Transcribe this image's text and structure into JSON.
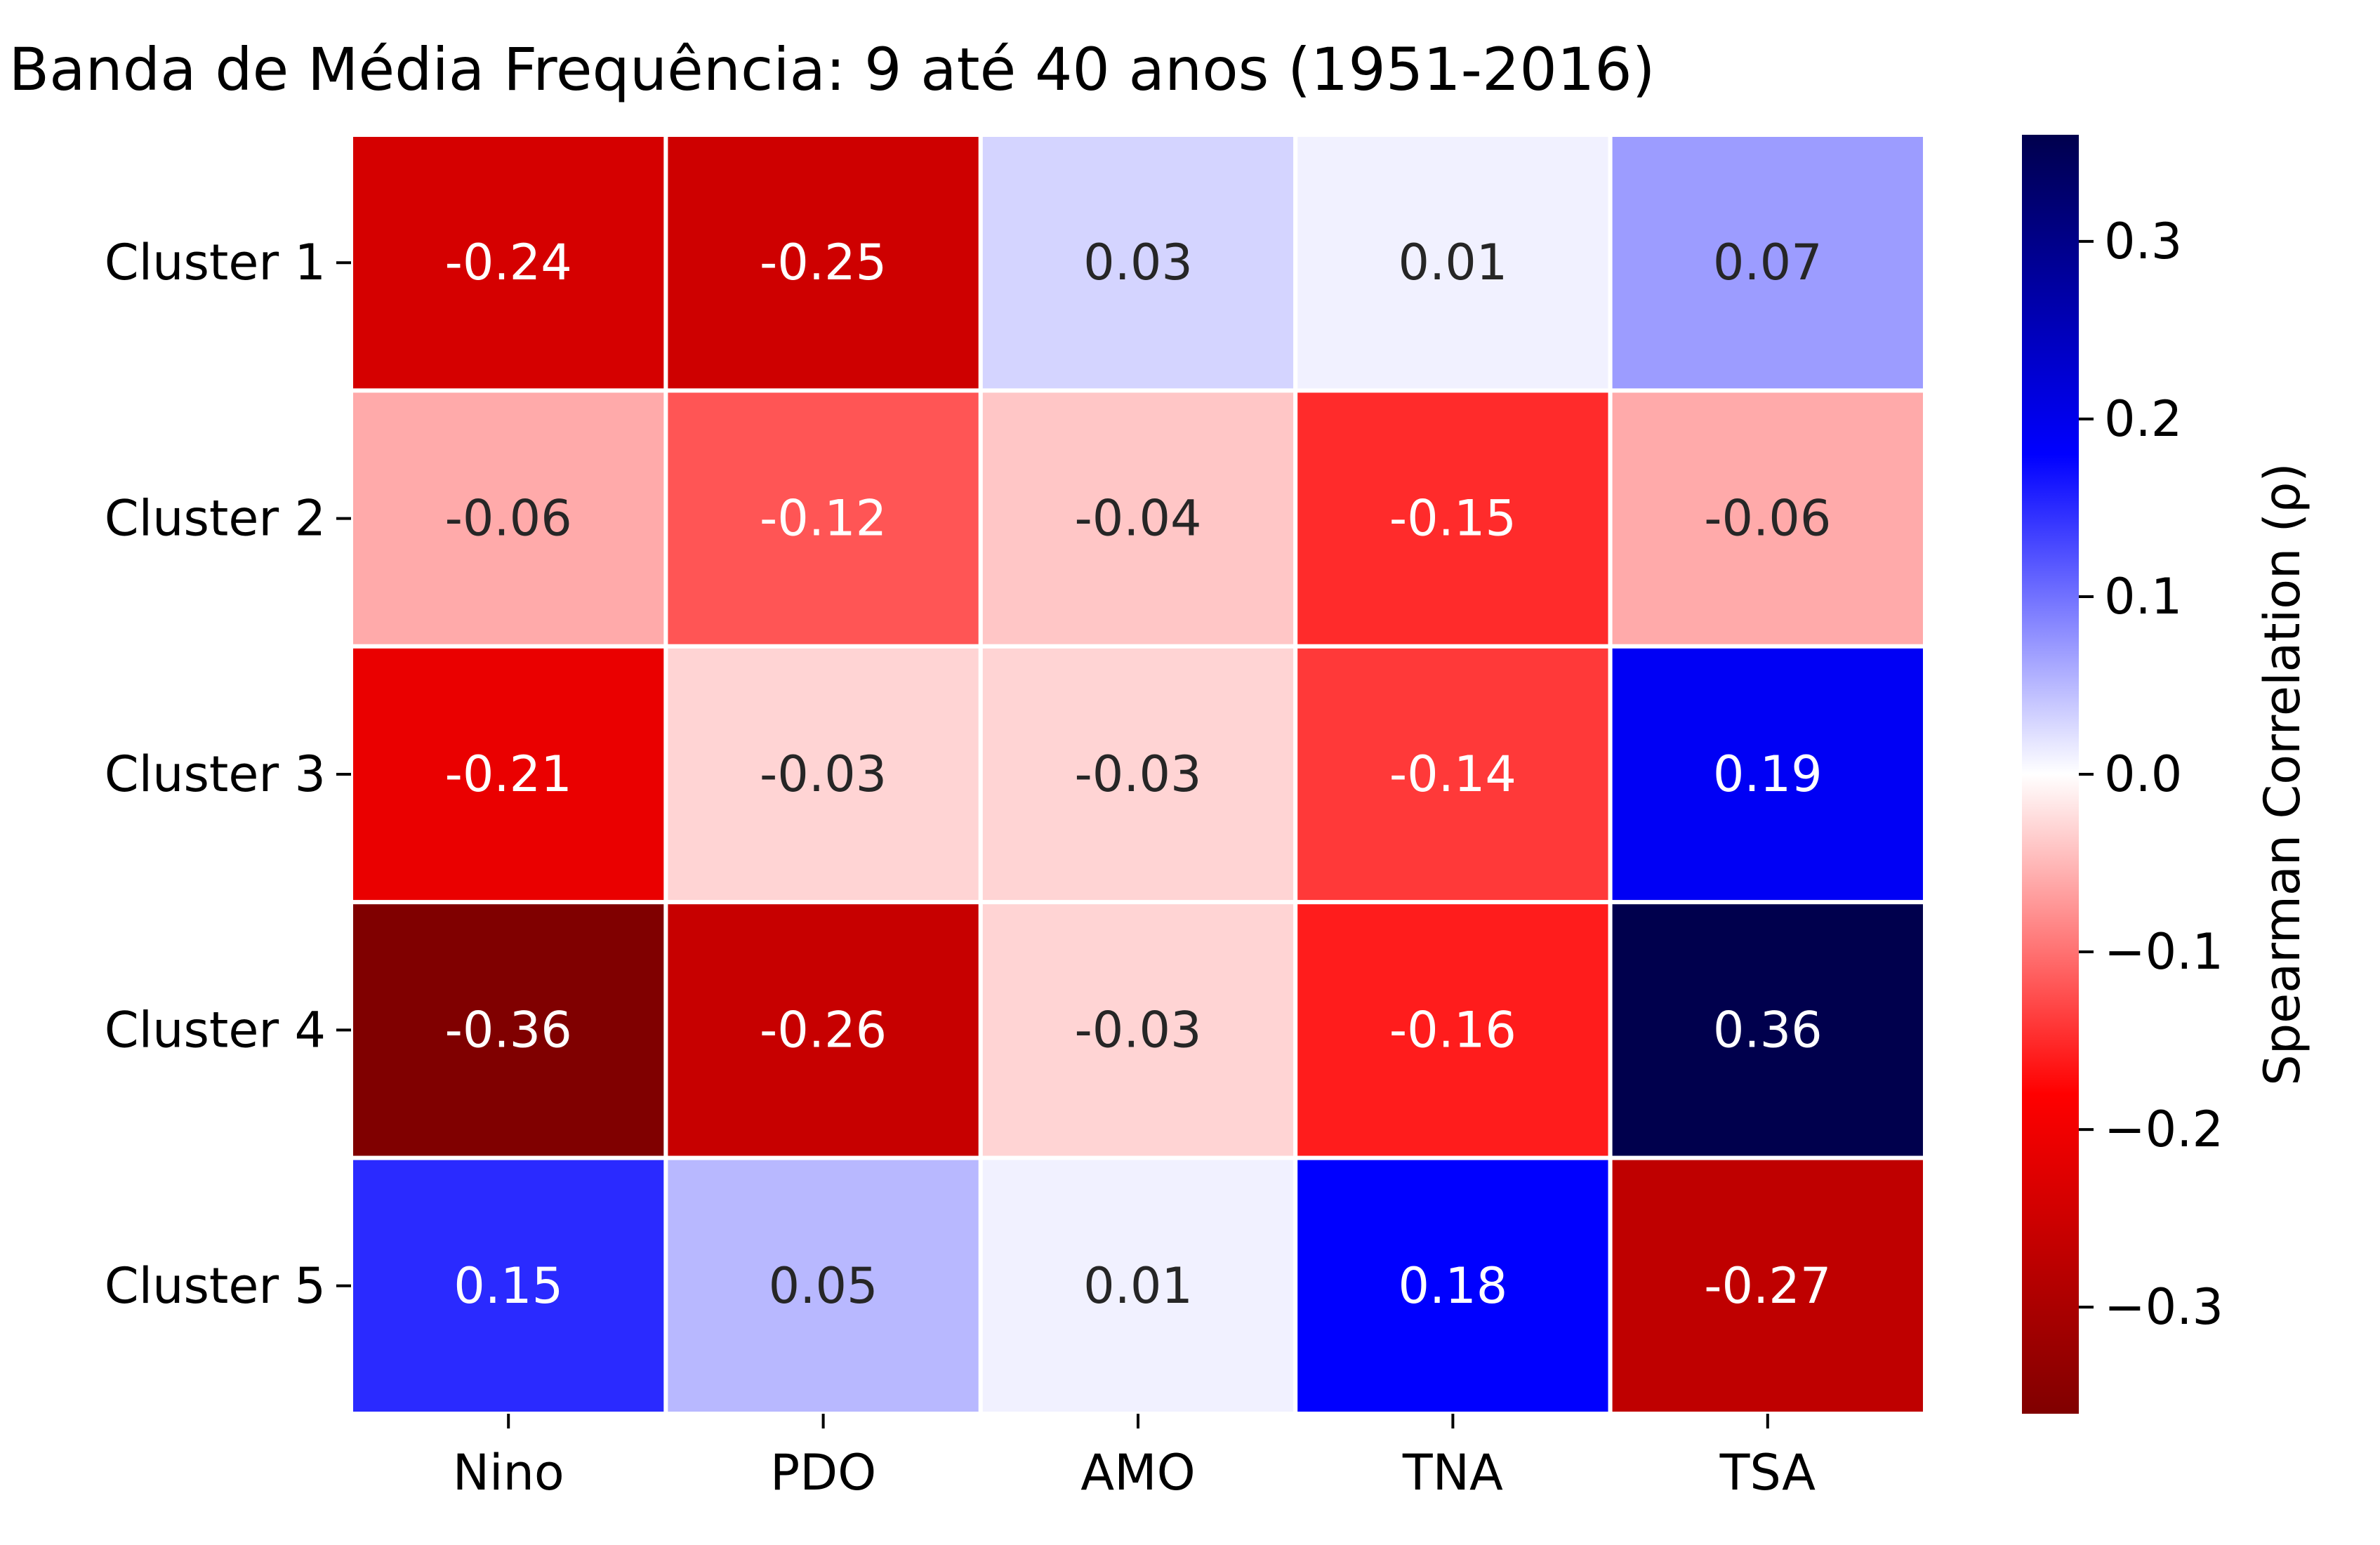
{
  "chart_data": {
    "type": "heatmap",
    "title": "Banda de Média Frequência: 9 até 40 anos (1951-2016)",
    "x_categories": [
      "Nino",
      "PDO",
      "AMO",
      "TNA",
      "TSA"
    ],
    "y_categories": [
      "Cluster 1",
      "Cluster 2",
      "Cluster 3",
      "Cluster 4",
      "Cluster 5"
    ],
    "values": [
      [
        -0.24,
        -0.25,
        0.03,
        0.01,
        0.07
      ],
      [
        -0.06,
        -0.12,
        -0.04,
        -0.15,
        -0.06
      ],
      [
        -0.21,
        -0.03,
        -0.03,
        -0.14,
        0.19
      ],
      [
        -0.36,
        -0.26,
        -0.03,
        -0.16,
        0.36
      ],
      [
        0.15,
        0.05,
        0.01,
        0.18,
        -0.27
      ]
    ],
    "value_labels": [
      [
        "-0.24",
        "-0.25",
        "0.03",
        "0.01",
        "0.07"
      ],
      [
        "-0.06",
        "-0.12",
        "-0.04",
        "-0.15",
        "-0.06"
      ],
      [
        "-0.21",
        "-0.03",
        "-0.03",
        "-0.14",
        "0.19"
      ],
      [
        "-0.36",
        "-0.26",
        "-0.03",
        "-0.16",
        "0.36"
      ],
      [
        "0.15",
        "0.05",
        "0.01",
        "0.18",
        "-0.27"
      ]
    ],
    "colormap": "seismic_r",
    "vmin": -0.36,
    "vmax": 0.36,
    "colorbar": {
      "label": "Spearman Correlation (ρ)",
      "ticks": [
        0.3,
        0.2,
        0.1,
        0.0,
        -0.1,
        -0.2,
        -0.3
      ],
      "tick_labels": [
        "0.3",
        "0.2",
        "0.1",
        "0.0",
        "−0.1",
        "−0.2",
        "−0.3"
      ]
    },
    "cell_border_color": "#ffffff",
    "annotation_colors": {
      "light": "#ffffff",
      "dark": "#262626"
    }
  }
}
